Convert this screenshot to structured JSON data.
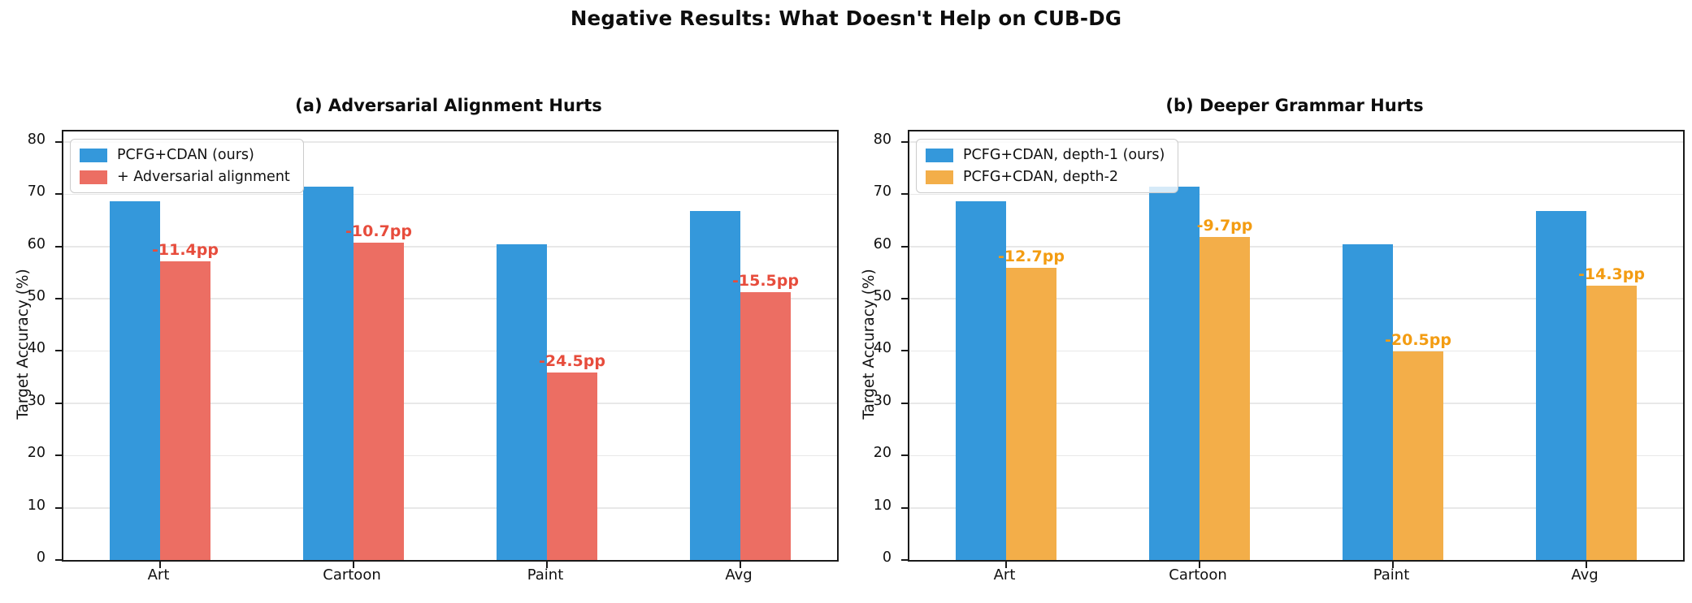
{
  "figure": {
    "title": "Negative Results: What Doesn't Help on CUB-DG"
  },
  "chart_data": [
    {
      "type": "bar",
      "panel": "a",
      "title": "(a) Adversarial Alignment Hurts",
      "ylabel": "Target Accuracy (%)",
      "ylim": [
        0,
        82
      ],
      "yticks": [
        0,
        10,
        20,
        30,
        40,
        50,
        60,
        70,
        80
      ],
      "grid": true,
      "legend_position": "upper-left",
      "categories": [
        "Art",
        "Cartoon",
        "Paint",
        "Avg"
      ],
      "series": [
        {
          "name": "PCFG+CDAN (ours)",
          "color": "#3498db",
          "values": [
            68.6,
            71.5,
            60.4,
            66.8
          ]
        },
        {
          "name": "+ Adversarial alignment",
          "color": "#ec6e63",
          "values": [
            57.2,
            60.8,
            35.9,
            51.3
          ]
        }
      ],
      "annotations": {
        "labels": [
          "-11.4pp",
          "-10.7pp",
          "-24.5pp",
          "-15.5pp"
        ],
        "color": "#e74c3c"
      }
    },
    {
      "type": "bar",
      "panel": "b",
      "title": "(b) Deeper Grammar Hurts",
      "ylabel": "Target Accuracy (%)",
      "ylim": [
        0,
        82
      ],
      "yticks": [
        0,
        10,
        20,
        30,
        40,
        50,
        60,
        70,
        80
      ],
      "grid": true,
      "legend_position": "upper-left",
      "categories": [
        "Art",
        "Cartoon",
        "Paint",
        "Avg"
      ],
      "series": [
        {
          "name": "PCFG+CDAN, depth-1 (ours)",
          "color": "#3498db",
          "values": [
            68.6,
            71.5,
            60.4,
            66.8
          ]
        },
        {
          "name": "PCFG+CDAN, depth-2",
          "color": "#f3ae49",
          "values": [
            55.9,
            61.8,
            39.9,
            52.5
          ]
        }
      ],
      "annotations": {
        "labels": [
          "-12.7pp",
          "-9.7pp",
          "-20.5pp",
          "-14.3pp"
        ],
        "color": "#f39c12"
      }
    }
  ]
}
